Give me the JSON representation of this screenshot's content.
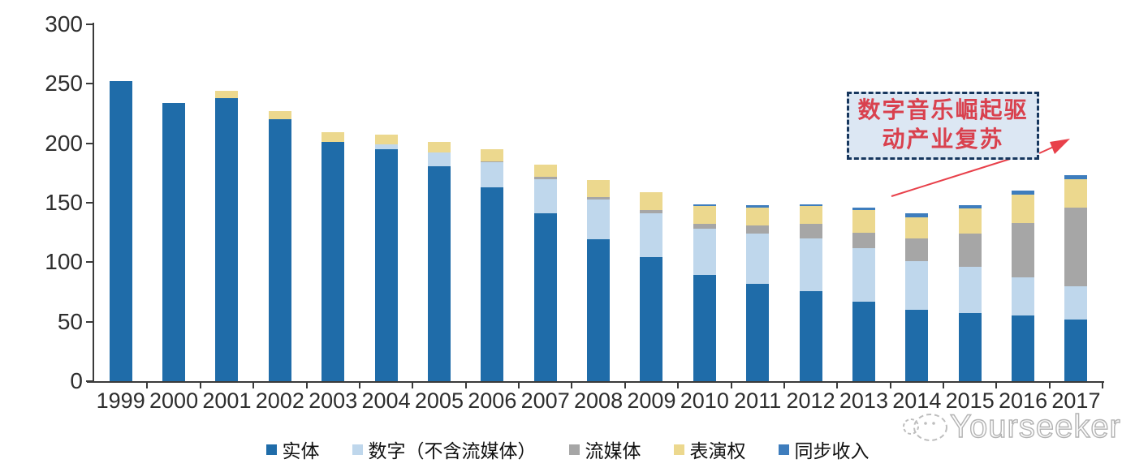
{
  "chart_data": {
    "type": "bar",
    "stacked": true,
    "title": "",
    "xlabel": "",
    "ylabel": "",
    "categories": [
      "1999",
      "2000",
      "2001",
      "2002",
      "2003",
      "2004",
      "2005",
      "2006",
      "2007",
      "2008",
      "2009",
      "2010",
      "2011",
      "2012",
      "2013",
      "2014",
      "2015",
      "2016",
      "2017"
    ],
    "series": [
      {
        "name": "实体",
        "color": "#1f6ca9",
        "values": [
          252,
          234,
          238,
          220,
          201,
          195,
          181,
          163,
          141,
          119,
          104,
          89,
          82,
          76,
          67,
          60,
          57,
          55,
          52
        ]
      },
      {
        "name": "数字（不含流媒体）",
        "color": "#bfd7ec",
        "values": [
          0,
          0,
          0,
          0,
          0,
          4,
          11,
          21,
          29,
          34,
          37,
          39,
          42,
          44,
          45,
          41,
          39,
          32,
          28
        ]
      },
      {
        "name": "流媒体",
        "color": "#a6a6a6",
        "values": [
          0,
          0,
          0,
          0,
          0,
          0,
          0,
          1,
          2,
          2,
          3,
          4,
          7,
          12,
          13,
          19,
          28,
          46,
          66
        ]
      },
      {
        "name": "表演权",
        "color": "#ecd88e",
        "values": [
          0,
          0,
          6,
          7,
          8,
          8,
          9,
          10,
          10,
          14,
          15,
          15,
          15,
          15,
          19,
          18,
          21,
          24,
          24
        ]
      },
      {
        "name": "同步收入",
        "color": "#3e7dbd",
        "values": [
          0,
          0,
          0,
          0,
          0,
          0,
          0,
          0,
          0,
          0,
          0,
          2,
          2,
          2,
          2,
          3,
          3,
          3,
          3
        ]
      }
    ],
    "ylim": [
      0,
      300
    ],
    "yticks": [
      0,
      50,
      100,
      150,
      200,
      250,
      300
    ],
    "grid": false,
    "legend_position": "bottom"
  },
  "annotation": {
    "line1": "数字音乐崛起驱",
    "line2": "动产业复苏",
    "text_color": "#d9414e",
    "box_fill": "#dce7f3",
    "box_border_color": "#17375e",
    "arrow_color": "#e8404a"
  },
  "watermark": {
    "text": "Yourseeker"
  }
}
